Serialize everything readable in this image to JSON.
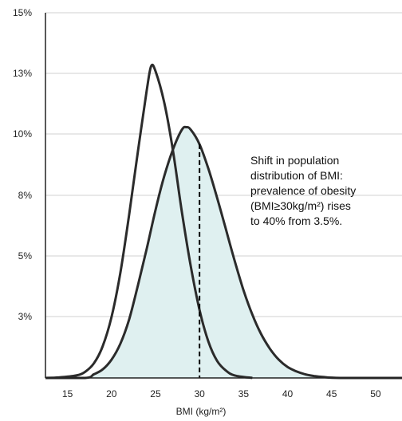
{
  "chart_data": {
    "type": "line",
    "title": "",
    "xlabel": "BMI (kg/m²)",
    "ylabel": "",
    "x_ticks": [
      15,
      20,
      25,
      30,
      35,
      40,
      45,
      50
    ],
    "y_ticks": [
      "15%",
      "13%",
      "10%",
      "8%",
      "5%",
      "3%"
    ],
    "xlim": [
      12.5,
      53
    ],
    "ylim": [
      0,
      15
    ],
    "grid": "horizontal",
    "series": [
      {
        "name": "",
        "fill": false,
        "x": [
          12.5,
          14,
          16,
          17,
          18,
          19,
          20,
          21,
          22,
          23,
          24,
          24.5,
          25,
          26,
          27,
          28,
          29,
          30,
          31,
          32,
          33,
          34,
          36
        ],
        "y": [
          0,
          0.02,
          0.1,
          0.25,
          0.6,
          1.3,
          2.5,
          4.3,
          6.7,
          9.3,
          11.8,
          12.8,
          12.6,
          11.3,
          9.3,
          6.8,
          4.6,
          2.8,
          1.5,
          0.7,
          0.3,
          0.1,
          0
        ]
      },
      {
        "name": "",
        "fill": true,
        "x": [
          12.5,
          17,
          18,
          19,
          20,
          21,
          22,
          23,
          24,
          25,
          26,
          27,
          28,
          28.5,
          29,
          30,
          31,
          32,
          33,
          34,
          35,
          36,
          37,
          38,
          39,
          40,
          41,
          42,
          43,
          44,
          46,
          53
        ],
        "y": [
          0,
          0,
          0.15,
          0.35,
          0.75,
          1.4,
          2.4,
          3.8,
          5.3,
          6.9,
          8.3,
          9.4,
          10.2,
          10.3,
          10.2,
          9.6,
          8.6,
          7.4,
          6.1,
          4.8,
          3.6,
          2.6,
          1.8,
          1.2,
          0.75,
          0.45,
          0.27,
          0.15,
          0.08,
          0.04,
          0,
          0
        ]
      }
    ],
    "reference_line": {
      "x": 30,
      "style": "dashed"
    },
    "annotation": {
      "lines": [
        "Shift in population",
        "distribution of BMI:",
        "prevalence of obesity",
        "(BMI≥30kg/m²) rises",
        "to 40% from 3.5%."
      ]
    },
    "colors": {
      "curve": "#2b2b2b",
      "fill": "#dff0f0",
      "grid": "#d0d0d0",
      "axis": "#222222"
    }
  }
}
